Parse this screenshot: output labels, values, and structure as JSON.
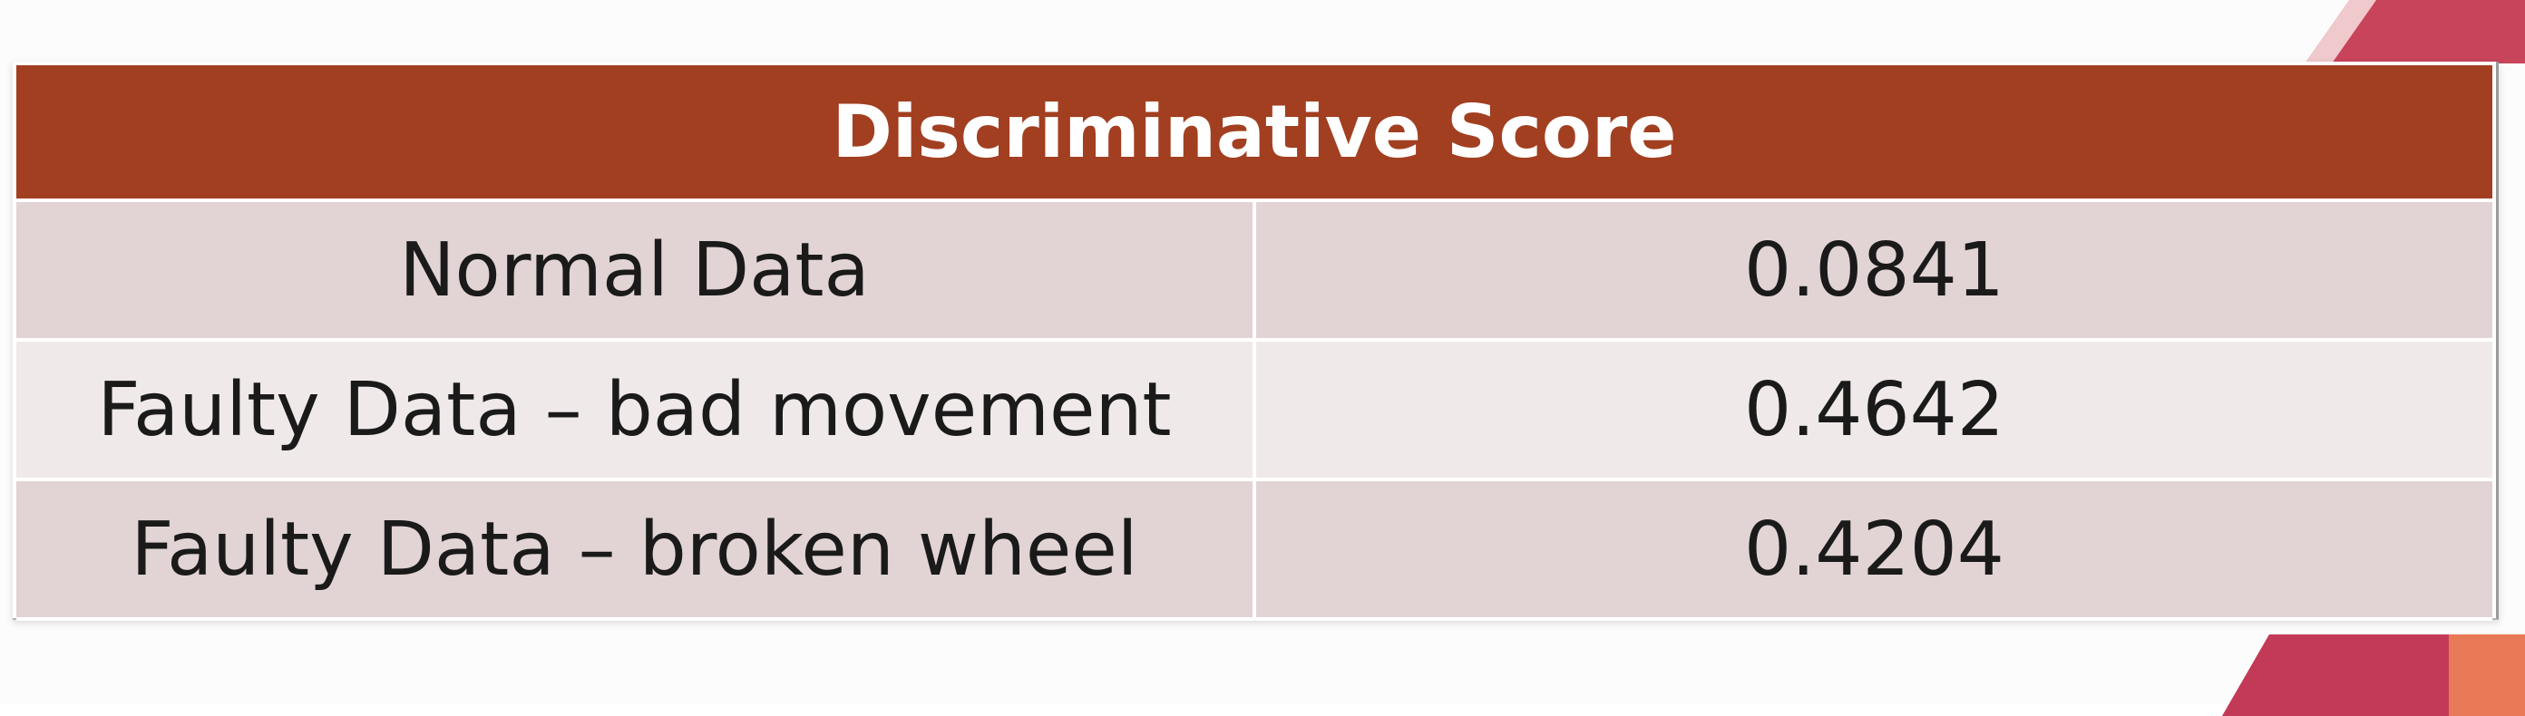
{
  "table": {
    "header": "Discriminative Score",
    "rows": [
      {
        "label": "Normal Data",
        "value": "0.0841"
      },
      {
        "label": "Faulty Data – bad movement",
        "value": "0.4642"
      },
      {
        "label": "Faulty Data – broken wheel",
        "value": "0.4204"
      }
    ]
  },
  "colors": {
    "header_bg": "#a23f20",
    "row_dark": "#e2d4d4",
    "row_light": "#f0e9e9",
    "accent_pink": "#c8445a",
    "accent_orange": "#e87a58"
  }
}
